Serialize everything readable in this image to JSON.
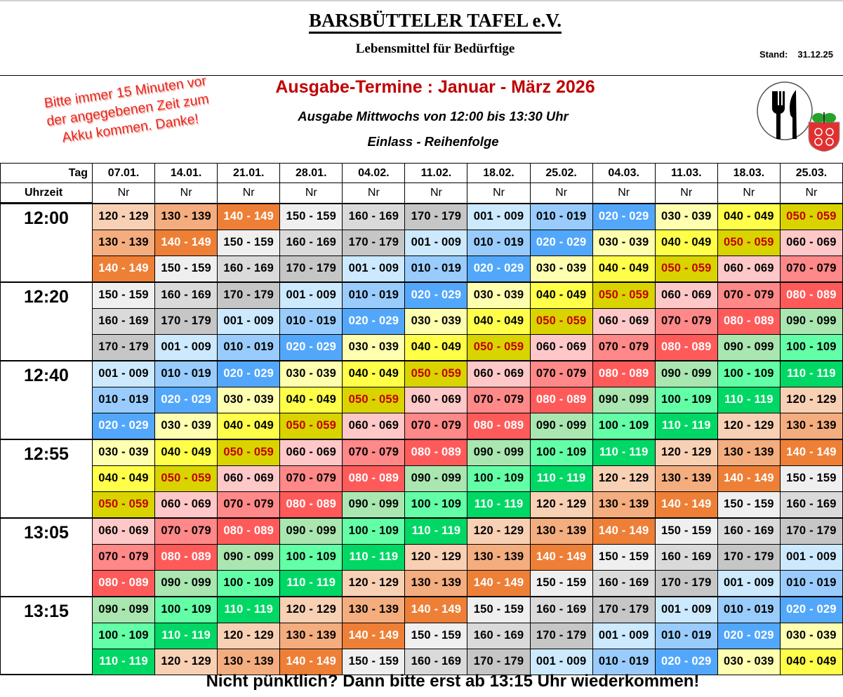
{
  "header": {
    "title": "BARSBÜTTELER TAFEL e.V.",
    "subtitle": "Lebensmittel für Bedürftige",
    "stand_label": "Stand:",
    "stand_date": "31.12.25"
  },
  "notice": {
    "lines": [
      "Bitte immer 15 Minuten vor",
      "der angegebenen Zeit zum",
      "Akku kommen. Danke!"
    ],
    "color": "#e8261e"
  },
  "main": {
    "heading": "Ausgabe-Termine :  Januar - März  2026",
    "heading_color": "#c00000",
    "schedule_line": "Ausgabe Mittwochs von 12:00 bis 13:30 Uhr",
    "order_line": "Einlass - Reihenfolge"
  },
  "logo": {
    "icons": [
      "fork-knife-icon",
      "coat-of-arms-icon"
    ]
  },
  "table": {
    "tag_label": "Tag",
    "time_label": "Uhrzeit",
    "nr_label": "Nr",
    "dates": [
      "07.01.",
      "14.01.",
      "21.01.",
      "28.01.",
      "04.02.",
      "11.02.",
      "18.02.",
      "25.02.",
      "04.03.",
      "11.03.",
      "18.03.",
      "25.03."
    ],
    "group_colors": {
      "001 - 009": {
        "bg": "#cce9fd",
        "fg": "#000000"
      },
      "010 - 019": {
        "bg": "#99ccfd",
        "fg": "#000000"
      },
      "020 - 029": {
        "bg": "#52a7fb",
        "fg": "#ffffff"
      },
      "030 - 039": {
        "bg": "#ffffb0",
        "fg": "#000000"
      },
      "040 - 049": {
        "bg": "#ffff4a",
        "fg": "#000000"
      },
      "050 - 059": {
        "bg": "#d9d300",
        "fg": "#c00000"
      },
      "060 - 069": {
        "bg": "#ffc8c8",
        "fg": "#000000"
      },
      "070 - 079": {
        "bg": "#ff8888",
        "fg": "#000000"
      },
      "080 - 089": {
        "bg": "#ff5a5a",
        "fg": "#ffffff"
      },
      "090 - 099": {
        "bg": "#a9e6b0",
        "fg": "#000000"
      },
      "100 - 109": {
        "bg": "#63ffa6",
        "fg": "#000000"
      },
      "110 - 119": {
        "bg": "#00d765",
        "fg": "#ffffff"
      },
      "120 - 129": {
        "bg": "#f8d0b4",
        "fg": "#000000"
      },
      "130 - 139": {
        "bg": "#f4ad7e",
        "fg": "#000000"
      },
      "140 - 149": {
        "bg": "#ee7f36",
        "fg": "#ffffff"
      },
      "150 - 159": {
        "bg": "#efefef",
        "fg": "#000000"
      },
      "160 - 169": {
        "bg": "#dadada",
        "fg": "#000000"
      },
      "170 - 179": {
        "bg": "#c6c6c6",
        "fg": "#000000"
      }
    },
    "slots": [
      {
        "time": "12:00",
        "rows": [
          [
            "120 - 129",
            "130 - 139",
            "140 - 149",
            "150 - 159",
            "160 - 169",
            "170 - 179",
            "001 - 009",
            "010 - 019",
            "020 - 029",
            "030 - 039",
            "040 - 049",
            "050 - 059"
          ],
          [
            "130 - 139",
            "140 - 149",
            "150 - 159",
            "160 - 169",
            "170 - 179",
            "001 - 009",
            "010 - 019",
            "020 - 029",
            "030 - 039",
            "040 - 049",
            "050 - 059",
            "060 - 069"
          ],
          [
            "140 - 149",
            "150 - 159",
            "160 - 169",
            "170 - 179",
            "001 - 009",
            "010 - 019",
            "020 - 029",
            "030 - 039",
            "040 - 049",
            "050 - 059",
            "060 - 069",
            "070 - 079"
          ]
        ]
      },
      {
        "time": "12:20",
        "rows": [
          [
            "150 - 159",
            "160 - 169",
            "170 - 179",
            "001 - 009",
            "010 - 019",
            "020 - 029",
            "030 - 039",
            "040 - 049",
            "050 - 059",
            "060 - 069",
            "070 - 079",
            "080 - 089"
          ],
          [
            "160 - 169",
            "170 - 179",
            "001 - 009",
            "010 - 019",
            "020 - 029",
            "030 - 039",
            "040 - 049",
            "050 - 059",
            "060 - 069",
            "070 - 079",
            "080 - 089",
            "090 - 099"
          ],
          [
            "170 - 179",
            "001 - 009",
            "010 - 019",
            "020 - 029",
            "030 - 039",
            "040 - 049",
            "050 - 059",
            "060 - 069",
            "070 - 079",
            "080 - 089",
            "090 - 099",
            "100 - 109"
          ]
        ]
      },
      {
        "time": "12:40",
        "rows": [
          [
            "001 - 009",
            "010 - 019",
            "020 - 029",
            "030 - 039",
            "040 - 049",
            "050 - 059",
            "060 - 069",
            "070 - 079",
            "080 - 089",
            "090 - 099",
            "100 - 109",
            "110 - 119"
          ],
          [
            "010 - 019",
            "020 - 029",
            "030 - 039",
            "040 - 049",
            "050 - 059",
            "060 - 069",
            "070 - 079",
            "080 - 089",
            "090 - 099",
            "100 - 109",
            "110 - 119",
            "120 - 129"
          ],
          [
            "020 - 029",
            "030 - 039",
            "040 - 049",
            "050 - 059",
            "060 - 069",
            "070 - 079",
            "080 - 089",
            "090 - 099",
            "100 - 109",
            "110 - 119",
            "120 - 129",
            "130 - 139"
          ]
        ]
      },
      {
        "time": "12:55",
        "rows": [
          [
            "030 - 039",
            "040 - 049",
            "050 - 059",
            "060 - 069",
            "070 - 079",
            "080 - 089",
            "090 - 099",
            "100 - 109",
            "110 - 119",
            "120 - 129",
            "130 - 139",
            "140 - 149"
          ],
          [
            "040 - 049",
            "050 - 059",
            "060 - 069",
            "070 - 079",
            "080 - 089",
            "090 - 099",
            "100 - 109",
            "110 - 119",
            "120 - 129",
            "130 - 139",
            "140 - 149",
            "150 - 159"
          ],
          [
            "050 - 059",
            "060 - 069",
            "070 - 079",
            "080 - 089",
            "090 - 099",
            "100 - 109",
            "110 - 119",
            "120 - 129",
            "130 - 139",
            "140 - 149",
            "150 - 159",
            "160 - 169"
          ]
        ]
      },
      {
        "time": "13:05",
        "rows": [
          [
            "060 - 069",
            "070 - 079",
            "080 - 089",
            "090 - 099",
            "100 - 109",
            "110 - 119",
            "120 - 129",
            "130 - 139",
            "140 - 149",
            "150 - 159",
            "160 - 169",
            "170 - 179"
          ],
          [
            "070 - 079",
            "080 - 089",
            "090 - 099",
            "100 - 109",
            "110 - 119",
            "120 - 129",
            "130 - 139",
            "140 - 149",
            "150 - 159",
            "160 - 169",
            "170 - 179",
            "001 - 009"
          ],
          [
            "080 - 089",
            "090 - 099",
            "100 - 109",
            "110 - 119",
            "120 - 129",
            "130 - 139",
            "140 - 149",
            "150 - 159",
            "160 - 169",
            "170 - 179",
            "001 - 009",
            "010 - 019"
          ]
        ]
      },
      {
        "time": "13:15",
        "rows": [
          [
            "090 - 099",
            "100 - 109",
            "110 - 119",
            "120 - 129",
            "130 - 139",
            "140 - 149",
            "150 - 159",
            "160 - 169",
            "170 - 179",
            "001 - 009",
            "010 - 019",
            "020 - 029"
          ],
          [
            "100 - 109",
            "110 - 119",
            "120 - 129",
            "130 - 139",
            "140 - 149",
            "150 - 159",
            "160 - 169",
            "170 - 179",
            "001 - 009",
            "010 - 019",
            "020 - 029",
            "030 - 039"
          ],
          [
            "110 - 119",
            "120 - 129",
            "130 - 139",
            "140 - 149",
            "150 - 159",
            "160 - 169",
            "170 - 179",
            "001 - 009",
            "010 - 019",
            "020 - 029",
            "030 - 039",
            "040 - 049"
          ]
        ]
      }
    ]
  },
  "footer": {
    "text": "Nicht pünktlich? Dann bitte erst ab 13:15 Uhr wiederkommen!"
  }
}
